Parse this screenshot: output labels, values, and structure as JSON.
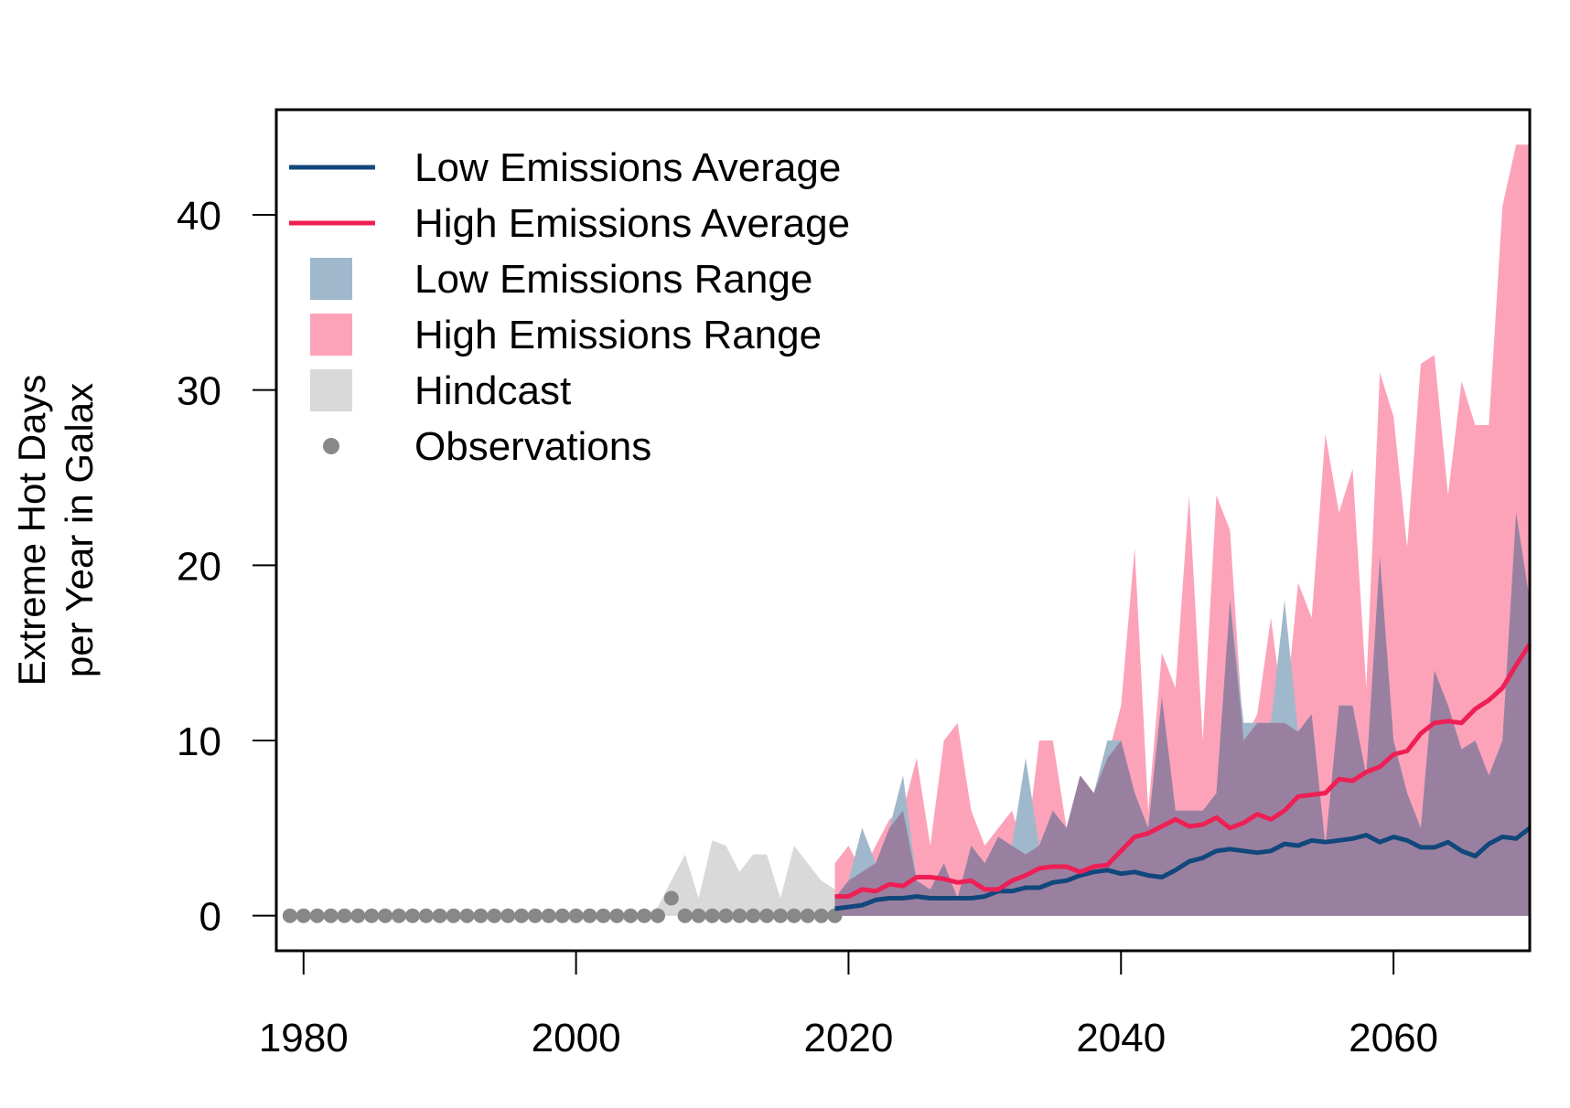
{
  "chart_data": {
    "type": "area",
    "title": "",
    "xlabel": "",
    "ylabel": [
      "Extreme Hot Days",
      "per Year in Galax"
    ],
    "xlim": [
      1978,
      2070
    ],
    "ylim": [
      -2,
      46
    ],
    "x_ticks": [
      1980,
      2000,
      2020,
      2040,
      2060
    ],
    "y_ticks": [
      0,
      10,
      20,
      30,
      40
    ],
    "grid": false,
    "legend_position": "top-left",
    "colors": {
      "low_avg": "#11477b",
      "high_avg": "#ee1f55",
      "low_range": "#a0b8cc",
      "high_range": "#fca3ba",
      "overlap": "#9a80a0",
      "hindcast": "#d9d9d9",
      "observations": "#888888"
    },
    "legend": [
      {
        "label": "Low Emissions Average",
        "kind": "line",
        "color": "#11477b"
      },
      {
        "label": "High Emissions Average",
        "kind": "line",
        "color": "#ee1f55"
      },
      {
        "label": "Low Emissions Range",
        "kind": "box",
        "color": "#a0b8cc"
      },
      {
        "label": "High Emissions Range",
        "kind": "box",
        "color": "#fca3ba"
      },
      {
        "label": "Hindcast",
        "kind": "box",
        "color": "#d9d9d9"
      },
      {
        "label": "Observations",
        "kind": "point",
        "color": "#888888"
      }
    ],
    "observations": {
      "x": [
        1979,
        1980,
        1981,
        1982,
        1983,
        1984,
        1985,
        1986,
        1987,
        1988,
        1989,
        1990,
        1991,
        1992,
        1993,
        1994,
        1995,
        1996,
        1997,
        1998,
        1999,
        2000,
        2001,
        2002,
        2003,
        2004,
        2005,
        2006,
        2007,
        2008,
        2009,
        2010,
        2011,
        2012,
        2013,
        2014,
        2015,
        2016,
        2017,
        2018,
        2019
      ],
      "y": [
        0,
        0,
        0,
        0,
        0,
        0,
        0,
        0,
        0,
        0,
        0,
        0,
        0,
        0,
        0,
        0,
        0,
        0,
        0,
        0,
        0,
        0,
        0,
        0,
        0,
        0,
        0,
        0,
        1,
        0,
        0,
        0,
        0,
        0,
        0,
        0,
        0,
        0,
        0,
        0,
        0
      ]
    },
    "hindcast": {
      "x": [
        2005,
        2006,
        2007,
        2008,
        2009,
        2010,
        2011,
        2012,
        2013,
        2014,
        2015,
        2016,
        2017,
        2018,
        2019
      ],
      "upper": [
        0,
        0.5,
        2,
        3.5,
        1,
        4.3,
        4,
        2.5,
        3.5,
        3.5,
        1,
        4,
        3,
        2,
        1.5
      ],
      "lower": [
        0,
        0,
        0,
        0,
        0,
        0,
        0,
        0,
        0,
        0,
        0,
        0,
        0,
        0,
        0
      ]
    },
    "low_range": {
      "x": [
        2019,
        2020,
        2021,
        2022,
        2023,
        2024,
        2025,
        2026,
        2027,
        2028,
        2029,
        2030,
        2031,
        2032,
        2033,
        2034,
        2035,
        2036,
        2037,
        2038,
        2039,
        2040,
        2041,
        2042,
        2043,
        2044,
        2045,
        2046,
        2047,
        2048,
        2049,
        2050,
        2051,
        2052,
        2053,
        2054,
        2055,
        2056,
        2057,
        2058,
        2059,
        2060,
        2061,
        2062,
        2063,
        2064,
        2065,
        2066,
        2067,
        2068,
        2069,
        2070
      ],
      "upper": [
        1,
        2,
        5,
        3,
        5,
        8,
        2,
        1.5,
        3,
        1,
        4,
        3,
        4.5,
        4,
        9,
        4,
        6,
        5,
        8,
        7,
        10,
        10,
        7,
        5,
        12.5,
        6,
        6,
        6,
        7,
        18,
        11,
        11,
        11,
        18,
        10.5,
        11.5,
        4,
        12,
        12,
        8,
        20.5,
        10,
        7,
        5,
        14,
        12,
        9.5,
        10,
        8,
        10,
        23,
        18
      ],
      "lower": [
        0,
        0,
        0,
        0,
        0,
        0,
        0,
        0,
        0,
        0,
        0,
        0,
        0,
        0,
        0,
        0,
        0,
        0,
        0,
        0,
        0,
        0,
        0,
        0,
        0,
        0,
        0,
        0,
        0,
        0,
        0,
        0,
        0,
        0,
        0,
        0,
        0,
        0,
        0,
        0,
        0,
        0,
        0,
        0,
        0,
        0,
        0,
        0,
        0,
        0,
        0,
        0
      ]
    },
    "high_range": {
      "x": [
        2019,
        2020,
        2021,
        2022,
        2023,
        2024,
        2025,
        2026,
        2027,
        2028,
        2029,
        2030,
        2031,
        2032,
        2033,
        2034,
        2035,
        2036,
        2037,
        2038,
        2039,
        2040,
        2041,
        2042,
        2043,
        2044,
        2045,
        2046,
        2047,
        2048,
        2049,
        2050,
        2051,
        2052,
        2053,
        2054,
        2055,
        2056,
        2057,
        2058,
        2059,
        2060,
        2061,
        2062,
        2063,
        2064,
        2065,
        2066,
        2067,
        2068,
        2069,
        2070
      ],
      "upper": [
        3,
        4,
        2.5,
        4,
        5.5,
        6,
        9,
        4,
        10,
        11,
        6,
        4,
        5,
        6,
        3.5,
        10,
        10,
        5,
        8,
        7,
        9,
        12,
        21,
        6,
        15,
        13,
        24,
        10,
        24,
        22,
        10,
        11.5,
        17,
        11,
        19,
        17,
        27.5,
        23,
        25.5,
        13,
        31,
        28.5,
        21,
        31.5,
        32,
        24,
        30.5,
        28,
        28,
        40.5,
        44,
        44
      ],
      "lower": [
        0,
        0,
        0,
        0,
        0,
        0,
        0,
        0,
        0,
        0,
        0,
        0,
        0,
        0,
        0,
        0,
        0,
        0,
        0,
        0,
        0,
        0,
        0,
        0,
        0,
        0,
        0,
        0,
        0,
        0,
        0,
        0,
        0,
        0,
        0,
        0,
        0,
        0,
        0,
        0,
        0,
        0,
        0,
        0,
        0,
        0,
        0,
        0,
        0,
        0,
        0,
        0
      ]
    },
    "series": [
      {
        "name": "Low Emissions Average",
        "x": [
          2019,
          2020,
          2021,
          2022,
          2023,
          2024,
          2025,
          2026,
          2027,
          2028,
          2029,
          2030,
          2031,
          2032,
          2033,
          2034,
          2035,
          2036,
          2037,
          2038,
          2039,
          2040,
          2041,
          2042,
          2043,
          2044,
          2045,
          2046,
          2047,
          2048,
          2049,
          2050,
          2051,
          2052,
          2053,
          2054,
          2055,
          2056,
          2057,
          2058,
          2059,
          2060,
          2061,
          2062,
          2063,
          2064,
          2065,
          2066,
          2067,
          2068,
          2069,
          2070
        ],
        "values": [
          0.4,
          0.5,
          0.6,
          0.9,
          1.0,
          1.0,
          1.1,
          1.0,
          1.0,
          1.0,
          1.0,
          1.1,
          1.4,
          1.4,
          1.6,
          1.6,
          1.9,
          2.0,
          2.3,
          2.5,
          2.6,
          2.4,
          2.5,
          2.3,
          2.2,
          2.6,
          3.1,
          3.3,
          3.7,
          3.8,
          3.7,
          3.6,
          3.7,
          4.1,
          4.0,
          4.3,
          4.2,
          4.3,
          4.4,
          4.6,
          4.2,
          4.5,
          4.3,
          3.9,
          3.9,
          4.2,
          3.7,
          3.4,
          4.1,
          4.5,
          4.4,
          5.0
        ]
      },
      {
        "name": "High Emissions Average",
        "x": [
          2019,
          2020,
          2021,
          2022,
          2023,
          2024,
          2025,
          2026,
          2027,
          2028,
          2029,
          2030,
          2031,
          2032,
          2033,
          2034,
          2035,
          2036,
          2037,
          2038,
          2039,
          2040,
          2041,
          2042,
          2043,
          2044,
          2045,
          2046,
          2047,
          2048,
          2049,
          2050,
          2051,
          2052,
          2053,
          2054,
          2055,
          2056,
          2057,
          2058,
          2059,
          2060,
          2061,
          2062,
          2063,
          2064,
          2065,
          2066,
          2067,
          2068,
          2069,
          2070
        ],
        "values": [
          1.1,
          1.1,
          1.5,
          1.4,
          1.8,
          1.7,
          2.2,
          2.2,
          2.1,
          1.9,
          2.0,
          1.5,
          1.5,
          2.0,
          2.3,
          2.7,
          2.8,
          2.8,
          2.5,
          2.8,
          2.9,
          3.7,
          4.5,
          4.7,
          5.1,
          5.5,
          5.1,
          5.2,
          5.6,
          5.0,
          5.3,
          5.8,
          5.5,
          6.0,
          6.8,
          6.9,
          7.0,
          7.8,
          7.7,
          8.2,
          8.5,
          9.2,
          9.4,
          10.4,
          11.0,
          11.1,
          11.0,
          11.8,
          12.3,
          13.0,
          14.3,
          15.5
        ]
      }
    ]
  }
}
